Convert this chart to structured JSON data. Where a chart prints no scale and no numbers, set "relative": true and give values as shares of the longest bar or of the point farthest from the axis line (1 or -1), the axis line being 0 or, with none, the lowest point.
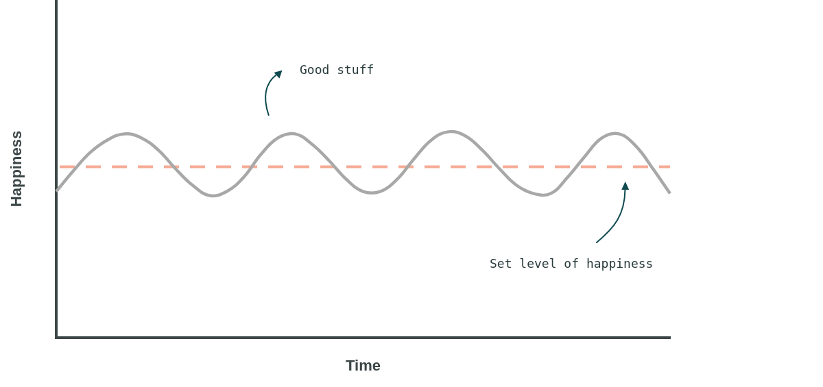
{
  "chart_data": {
    "type": "line",
    "xlabel": "Time",
    "ylabel": "Happiness",
    "relative": true,
    "marker": "none",
    "categories": [
      null,
      null,
      null,
      null,
      null,
      null,
      null,
      null,
      null,
      null,
      null,
      null,
      null,
      null,
      null,
      null,
      null,
      null,
      null,
      null,
      null,
      null,
      null,
      null,
      null,
      null,
      null,
      null,
      null,
      null,
      null,
      null,
      null,
      null,
      null,
      null,
      null
    ],
    "series": [
      {
        "color": "#a8a8a8",
        "values": [
          0.71,
          0.81,
          0.9,
          0.96,
          0.99,
          0.97,
          0.91,
          0.82,
          0.74,
          0.69,
          0.71,
          0.78,
          0.89,
          0.97,
          0.99,
          0.94,
          0.86,
          0.77,
          0.71,
          0.71,
          0.77,
          0.87,
          0.96,
          1.0,
          0.98,
          0.91,
          0.82,
          0.74,
          0.7,
          0.7,
          0.78,
          0.88,
          0.97,
          0.99,
          0.93,
          0.82,
          0.7
        ]
      }
    ],
    "ref_lines": [
      {
        "axis": "y",
        "value": 0.83,
        "color": "#f5ab96",
        "line_style": "dashed"
      }
    ],
    "annotations": [
      "Good stuff",
      "Set level of happiness"
    ]
  }
}
